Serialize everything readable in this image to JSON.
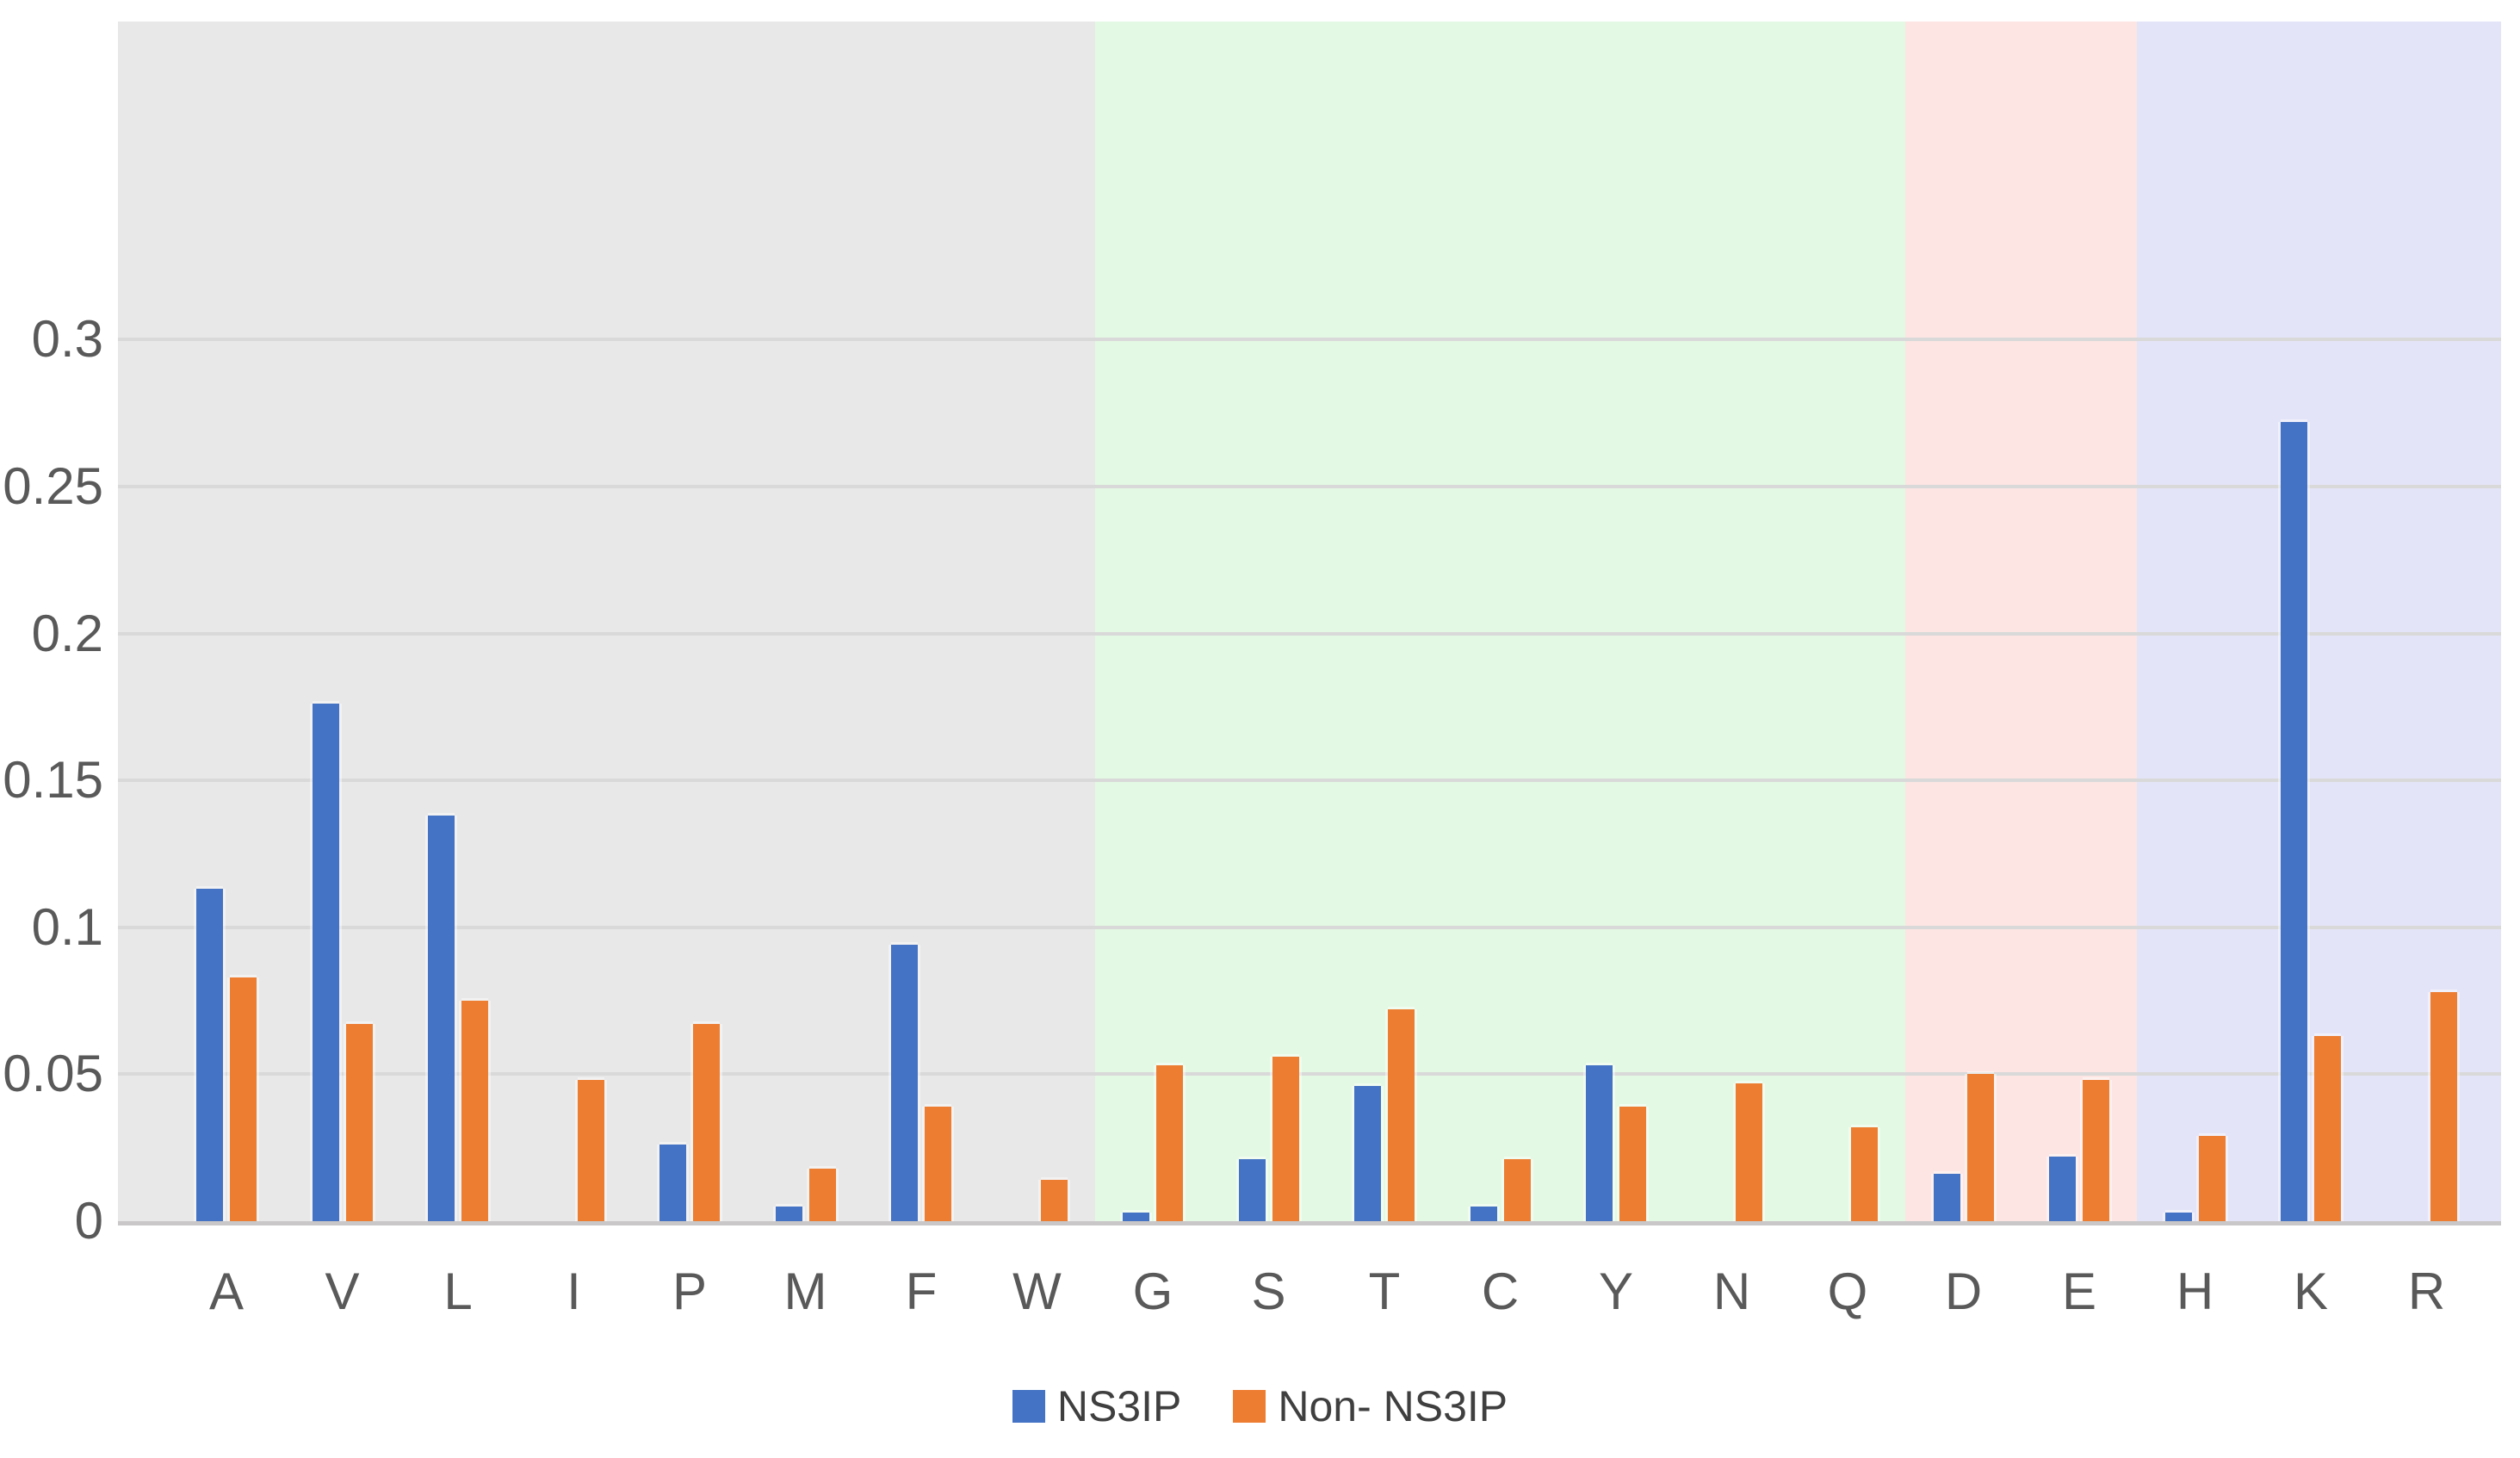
{
  "chart_data": {
    "type": "bar",
    "title": "",
    "xlabel": "",
    "ylabel": "",
    "categories": [
      "A",
      "V",
      "L",
      "I",
      "P",
      "M",
      "F",
      "W",
      "G",
      "S",
      "T",
      "C",
      "Y",
      "N",
      "Q",
      "D",
      "E",
      "H",
      "K",
      "R"
    ],
    "series": [
      {
        "name": "NS3IP",
        "color": "#4472C4",
        "values": [
          0.113,
          0.176,
          0.138,
          0,
          0.026,
          0.005,
          0.094,
          0,
          0.003,
          0.021,
          0.046,
          0.005,
          0.053,
          0,
          0,
          0.016,
          0.022,
          0.003,
          0.272,
          0
        ]
      },
      {
        "name": "Non- NS3IP",
        "color": "#ED7D31",
        "values": [
          0.083,
          0.067,
          0.075,
          0.048,
          0.067,
          0.018,
          0.039,
          0.014,
          0.053,
          0.056,
          0.072,
          0.021,
          0.039,
          0.047,
          0.032,
          0.05,
          0.048,
          0.029,
          0.063,
          0.078
        ]
      }
    ],
    "y_axis": {
      "range": [
        0,
        0.41
      ],
      "ticks": [
        {
          "label": "0.3",
          "value": 0.3
        },
        {
          "label": "0.25",
          "value": 0.25
        },
        {
          "label": "0.2",
          "value": 0.2
        },
        {
          "label": "0.15",
          "value": 0.15
        },
        {
          "label": "0.1",
          "value": 0.1
        },
        {
          "label": "0.05",
          "value": 0.05
        },
        {
          "label": "0",
          "value": 0.0
        }
      ]
    },
    "background_bands": [
      {
        "name": "band-gray",
        "color": "#E9E8E8",
        "from": "A",
        "to": "W"
      },
      {
        "name": "band-green",
        "color": "#E3F9E3",
        "from": "G",
        "to": "Q"
      },
      {
        "name": "band-pink",
        "color": "#FCE5E3",
        "from": "D",
        "to": "E"
      },
      {
        "name": "band-purple",
        "color": "#E4E4F8",
        "from": "H",
        "to": "R"
      }
    ],
    "legend": {
      "position": "bottom",
      "entries": [
        "NS3IP",
        "Non- NS3IP"
      ]
    },
    "grid": true
  }
}
